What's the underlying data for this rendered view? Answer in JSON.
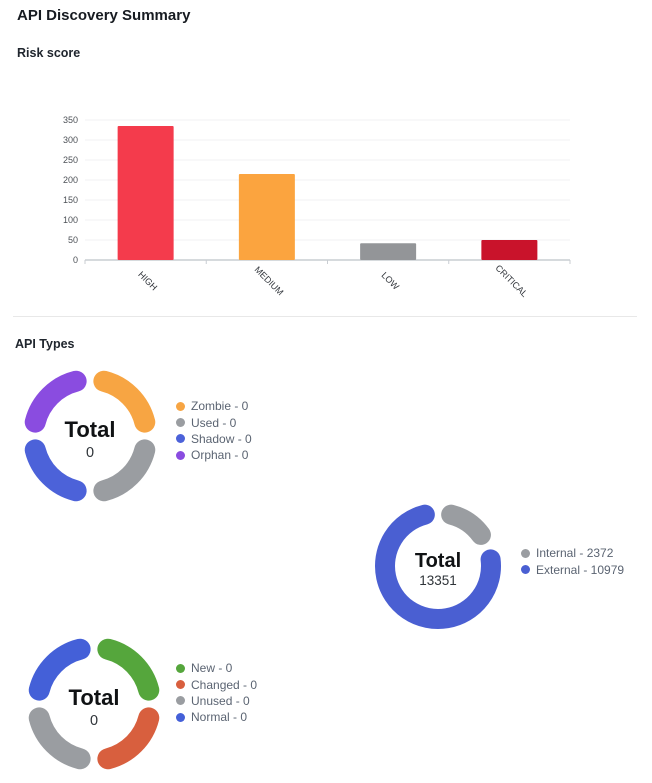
{
  "header": {
    "title": "API Discovery Summary"
  },
  "sections": {
    "risk_score_label": "Risk score",
    "api_types_label": "API Types"
  },
  "chart_data": [
    {
      "type": "bar",
      "title": "Risk score",
      "categories": [
        "HIGH",
        "MEDIUM",
        "LOW",
        "CRITICAL"
      ],
      "values": [
        335,
        215,
        42,
        50
      ],
      "bar_colors": [
        "#f43b4c",
        "#fba43f",
        "#939598",
        "#c9132b"
      ],
      "ylim": [
        0,
        350
      ],
      "yticks": [
        0,
        50,
        100,
        150,
        200,
        250,
        300,
        350
      ],
      "xlabel": "",
      "ylabel": "",
      "grid": true,
      "legend_position": "none"
    },
    {
      "type": "donut",
      "title": "API Types",
      "center_label": "Total",
      "center_value": "0",
      "segments": [
        {
          "label": "Zombie",
          "value": 0,
          "color": "#f7a543"
        },
        {
          "label": "Used",
          "value": 0,
          "color": "#9a9da1"
        },
        {
          "label": "Shadow",
          "value": 0,
          "color": "#4c62d9"
        },
        {
          "label": "Orphan",
          "value": 0,
          "color": "#8a4ce0"
        }
      ],
      "legend_position": "right"
    },
    {
      "type": "donut",
      "title": "API Types",
      "center_label": "Total",
      "center_value": "13351",
      "segments": [
        {
          "label": "Internal",
          "value": 2372,
          "color": "#9a9da1"
        },
        {
          "label": "External",
          "value": 10979,
          "color": "#4a5fd2"
        }
      ],
      "legend_position": "right"
    },
    {
      "type": "donut",
      "title": "API Types",
      "center_label": "Total",
      "center_value": "0",
      "segments": [
        {
          "label": "New",
          "value": 0,
          "color": "#55a63c"
        },
        {
          "label": "Changed",
          "value": 0,
          "color": "#d85f3e"
        },
        {
          "label": "Unused",
          "value": 0,
          "color": "#9a9da1"
        },
        {
          "label": "Normal",
          "value": 0,
          "color": "#4460d8"
        }
      ],
      "legend_position": "right"
    }
  ]
}
